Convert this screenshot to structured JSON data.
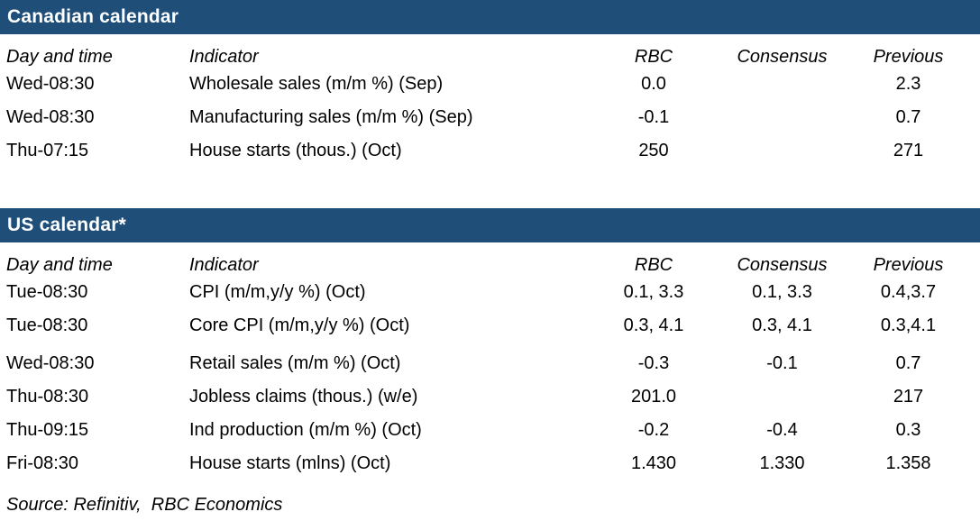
{
  "page": {
    "accent_color": "#1f4e79",
    "background_color": "#ffffff",
    "text_color": "#000000"
  },
  "tables": [
    {
      "title": "Canadian calendar",
      "columns": [
        "Day and time",
        "Indicator",
        "RBC",
        "Consensus",
        "Previous"
      ],
      "rows": [
        {
          "day": "Wed-08:30",
          "indicator": "Wholesale sales (m/m %) (Sep)",
          "rbc": "0.0",
          "consensus": "",
          "previous": "2.3"
        },
        {
          "day": "Wed-08:30",
          "indicator": "Manufacturing sales (m/m %) (Sep)",
          "rbc": "-0.1",
          "consensus": "",
          "previous": "0.7"
        },
        {
          "day": "Thu-07:15",
          "indicator": "House starts (thous.) (Oct)",
          "rbc": "250",
          "consensus": "",
          "previous": "271"
        }
      ]
    },
    {
      "title": "US calendar*",
      "columns": [
        "Day and time",
        "Indicator",
        "RBC",
        "Consensus",
        "Previous"
      ],
      "rows": [
        {
          "day": "Tue-08:30",
          "indicator": "CPI (m/m,y/y %) (Oct)",
          "rbc": "0.1, 3.3",
          "consensus": "0.1, 3.3",
          "previous": "0.4,3.7"
        },
        {
          "day": "Tue-08:30",
          "indicator": "Core CPI (m/m,y/y %) (Oct)",
          "rbc": "0.3, 4.1",
          "consensus": "0.3, 4.1",
          "previous": "0.3,4.1"
        },
        {
          "day": "Wed-08:30",
          "indicator": "Retail sales (m/m %) (Oct)",
          "rbc": "-0.3",
          "consensus": "-0.1",
          "previous": "0.7"
        },
        {
          "day": "Thu-08:30",
          "indicator": "Jobless claims (thous.) (w/e)",
          "rbc": "201.0",
          "consensus": "",
          "previous": "217"
        },
        {
          "day": "Thu-09:15",
          "indicator": "Ind production (m/m %) (Oct)",
          "rbc": "-0.2",
          "consensus": "-0.4",
          "previous": "0.3"
        },
        {
          "day": "Fri-08:30",
          "indicator": "House starts (mlns) (Oct)",
          "rbc": "1.430",
          "consensus": "1.330",
          "previous": "1.358"
        }
      ]
    }
  ],
  "source": "Source: Refinitiv,  RBC Economics"
}
